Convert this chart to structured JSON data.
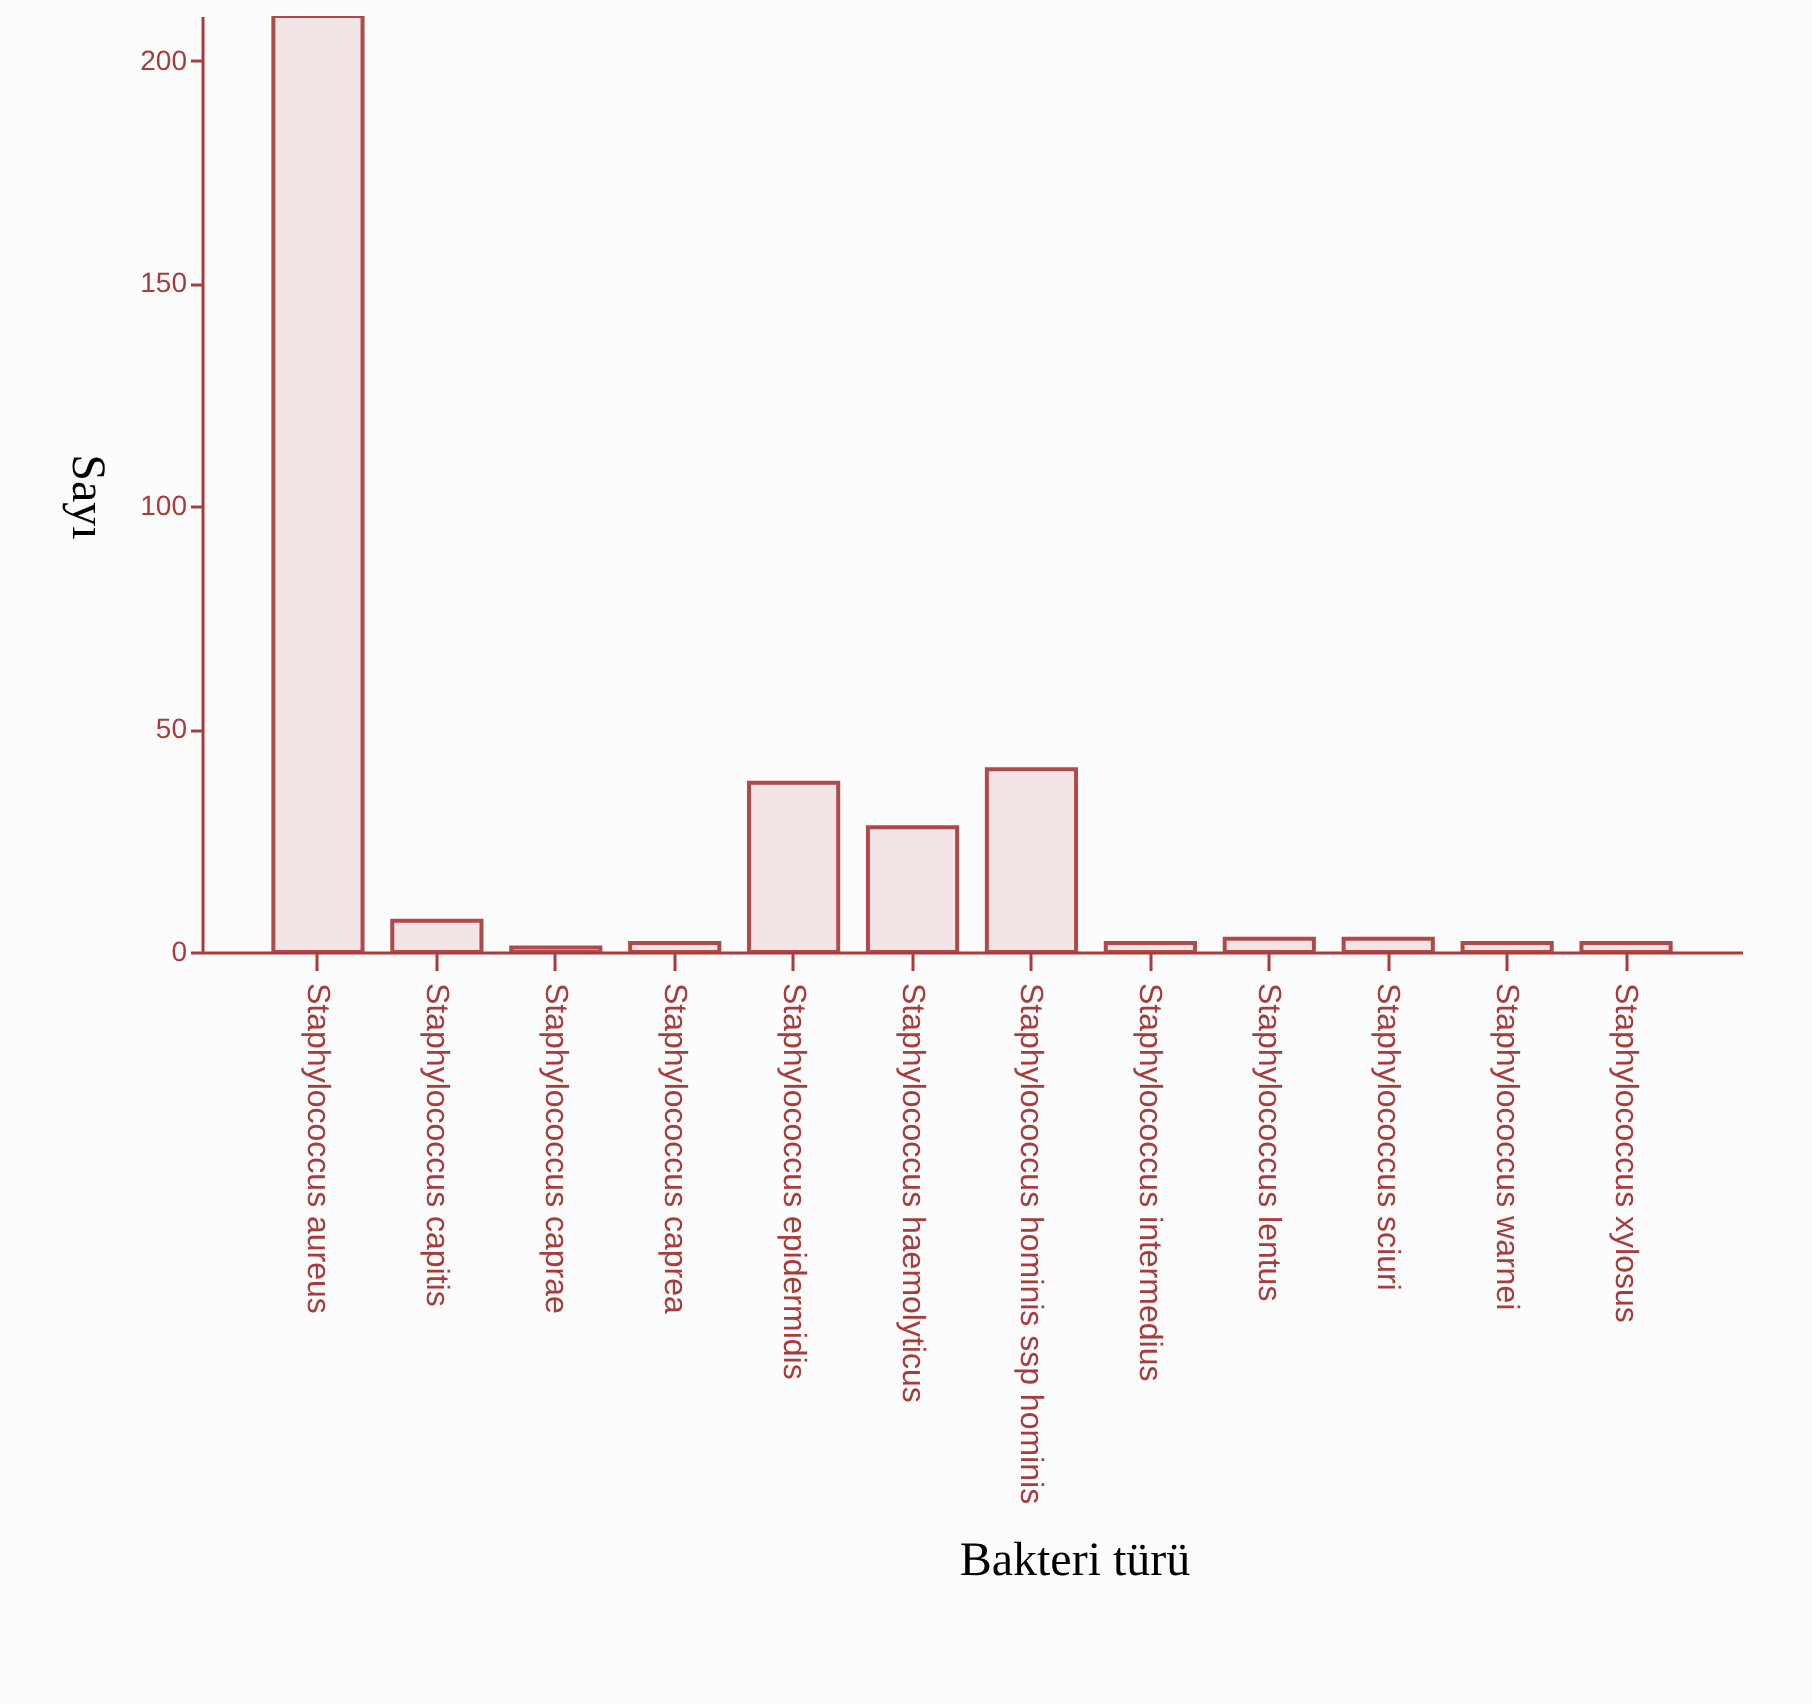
{
  "chart_data": {
    "type": "bar",
    "xlabel": "Bakteri türü",
    "ylabel": "Sayı",
    "categories": [
      "Staphylococcus aureus",
      "Staphylococcus capitis",
      "Staphylococcus caprae",
      "Staphylococcus caprea",
      "Staphylococcus epidermidis",
      "Staphylococcus haemolyticus",
      "Staphylococcus hominis ssp hominis",
      "Staphylococcus intermedius",
      "Staphylococcus lentus",
      "Staphylococcus sciuri",
      "Staphylococcus warnei",
      "Staphylococcus xylosus"
    ],
    "values": [
      210,
      7,
      1,
      2,
      38,
      28,
      41,
      2,
      3,
      3,
      2,
      2
    ],
    "color": "#b04a4a",
    "ylim": [
      0,
      210
    ],
    "yticks": [
      0,
      50,
      100,
      150,
      200
    ],
    "grid": false
  }
}
